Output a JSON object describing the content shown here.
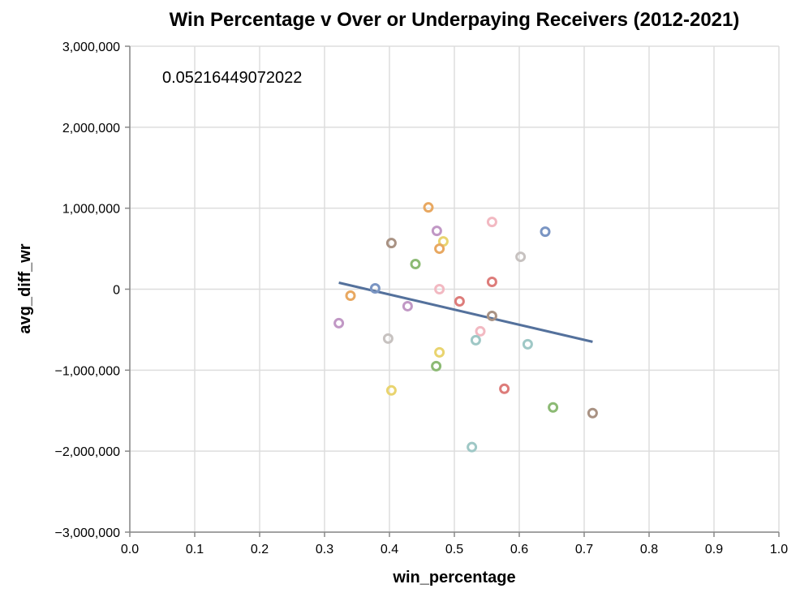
{
  "chart_data": {
    "type": "scatter",
    "title": "Win Percentage v Over or Underpaying Receivers (2012-2021)",
    "xlabel": "win_percentage",
    "ylabel": "avg_diff_wr",
    "xlim": [
      0,
      1
    ],
    "ylim": [
      -3000000,
      3000000
    ],
    "x_ticks": [
      "0.0",
      "0.1",
      "0.2",
      "0.3",
      "0.4",
      "0.5",
      "0.6",
      "0.7",
      "0.8",
      "0.9",
      "1.0"
    ],
    "y_ticks": [
      "3,000,000",
      "2,000,000",
      "1,000,000",
      "0",
      "−1,000,000",
      "−2,000,000",
      "−3,000,000"
    ],
    "grid": true,
    "annotation": "0.05216449072022",
    "points": [
      {
        "x": 0.46,
        "y": 1010000,
        "color": "#e8a861"
      },
      {
        "x": 0.473,
        "y": 720000,
        "color": "#c198c5"
      },
      {
        "x": 0.483,
        "y": 590000,
        "color": "#e9d46f"
      },
      {
        "x": 0.477,
        "y": 500000,
        "color": "#e8a861"
      },
      {
        "x": 0.403,
        "y": 570000,
        "color": "#a99283"
      },
      {
        "x": 0.44,
        "y": 310000,
        "color": "#8cba74"
      },
      {
        "x": 0.558,
        "y": 830000,
        "color": "#f2b9c2"
      },
      {
        "x": 0.64,
        "y": 710000,
        "color": "#7a95c3"
      },
      {
        "x": 0.602,
        "y": 400000,
        "color": "#c7c2c0"
      },
      {
        "x": 0.558,
        "y": 90000,
        "color": "#dd7c7a"
      },
      {
        "x": 0.378,
        "y": 10000,
        "color": "#7a95c3"
      },
      {
        "x": 0.477,
        "y": 0,
        "color": "#f2b9c2"
      },
      {
        "x": 0.34,
        "y": -80000,
        "color": "#e8a861"
      },
      {
        "x": 0.508,
        "y": -150000,
        "color": "#dd7c7a"
      },
      {
        "x": 0.428,
        "y": -210000,
        "color": "#c198c5"
      },
      {
        "x": 0.558,
        "y": -330000,
        "color": "#a99283"
      },
      {
        "x": 0.322,
        "y": -420000,
        "color": "#c198c5"
      },
      {
        "x": 0.54,
        "y": -520000,
        "color": "#f2b9c2"
      },
      {
        "x": 0.398,
        "y": -610000,
        "color": "#c7c2c0"
      },
      {
        "x": 0.533,
        "y": -630000,
        "color": "#9fc8c6"
      },
      {
        "x": 0.613,
        "y": -680000,
        "color": "#9fc8c6"
      },
      {
        "x": 0.477,
        "y": -780000,
        "color": "#e9d46f"
      },
      {
        "x": 0.472,
        "y": -950000,
        "color": "#8cba74"
      },
      {
        "x": 0.403,
        "y": -1250000,
        "color": "#e9d46f"
      },
      {
        "x": 0.577,
        "y": -1230000,
        "color": "#dd7c7a"
      },
      {
        "x": 0.652,
        "y": -1460000,
        "color": "#8cba74"
      },
      {
        "x": 0.713,
        "y": -1530000,
        "color": "#a99283"
      },
      {
        "x": 0.527,
        "y": -1950000,
        "color": "#9fc8c6"
      }
    ],
    "trend_line": {
      "x": [
        0.322,
        0.713
      ],
      "y": [
        80000,
        -650000
      ],
      "color": "#54719c"
    }
  }
}
